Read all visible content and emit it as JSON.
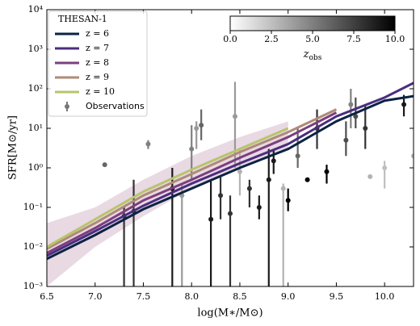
{
  "chart_data": {
    "type": "line",
    "xlabel": "log(M∗/M⊙)",
    "ylabel": "SFR[M⊙/yr]",
    "legend_title": "THESAN-1",
    "legend": "upper left",
    "log_y": true,
    "xlim": [
      6.5,
      10.3
    ],
    "ylim": [
      0.001,
      10000
    ],
    "xticks": [
      6.5,
      {
        "value": 7,
        "label": "7.0"
      },
      7.5,
      {
        "value": 8,
        "label": "8.0"
      },
      8.5,
      {
        "value": 9,
        "label": "9.0"
      },
      9.5,
      {
        "value": 10,
        "label": "10.0"
      }
    ],
    "yticks": [
      {
        "value": 0.001,
        "label": "10⁻³"
      },
      {
        "value": 0.01,
        "label": "10⁻²"
      },
      {
        "value": 0.1,
        "label": "10⁻¹"
      },
      {
        "value": 1,
        "label": "10⁰"
      },
      {
        "value": 10,
        "label": "10¹"
      },
      {
        "value": 100,
        "label": "10²"
      },
      {
        "value": 1000,
        "label": "10³"
      },
      {
        "value": 10000,
        "label": "10⁴"
      }
    ],
    "x": [
      6.5,
      7.0,
      7.5,
      8.0,
      8.5,
      9.0,
      9.5,
      10.0,
      10.3
    ],
    "series": [
      {
        "name": "z = 6",
        "color": "#0b2344",
        "values": [
          0.005,
          0.02,
          0.09,
          0.3,
          1.0,
          3.0,
          15,
          50,
          65
        ]
      },
      {
        "name": "z = 7",
        "color": "#4b2d7f",
        "values": [
          0.006,
          0.025,
          0.11,
          0.4,
          1.3,
          4,
          20,
          60,
          140
        ]
      },
      {
        "name": "z = 8",
        "color": "#7b3f7e",
        "values": [
          0.007,
          0.03,
          0.15,
          0.5,
          1.8,
          6,
          25,
          null,
          null
        ],
        "band_color": "#d9bfd0",
        "lower": [
          0.001,
          0.01,
          0.06,
          0.3,
          1,
          3,
          null,
          null,
          null
        ],
        "upper": [
          0.04,
          0.1,
          0.5,
          2,
          6,
          15,
          null,
          null,
          null
        ]
      },
      {
        "name": "z = 9",
        "color": "#ae8b77",
        "values": [
          0.009,
          0.04,
          0.2,
          0.7,
          2.5,
          8,
          30,
          null,
          null
        ]
      },
      {
        "name": "z = 10",
        "color": "#b8c46c",
        "values": [
          0.01,
          0.05,
          0.25,
          0.9,
          3,
          10,
          null,
          null,
          null
        ]
      }
    ],
    "observations": {
      "name": "Observations",
      "x": [
        7.1,
        7.3,
        7.4,
        7.55,
        7.8,
        7.9,
        8.0,
        8.05,
        8.1,
        8.2,
        8.3,
        8.4,
        8.45,
        8.5,
        8.6,
        8.7,
        8.8,
        8.85,
        8.95,
        9.0,
        9.1,
        9.2,
        9.3,
        9.4,
        9.6,
        9.65,
        9.7,
        9.8,
        9.85,
        10.0,
        10.2,
        10.3
      ],
      "y": [
        1.2,
        0.06,
        0.08,
        4,
        0.3,
        0.2,
        3,
        10,
        12,
        0.05,
        0.2,
        0.07,
        20,
        0.8,
        0.3,
        0.1,
        0.5,
        1.5,
        0.3,
        0.15,
        2,
        0.5,
        10,
        0.8,
        5,
        40,
        20,
        10,
        0.6,
        1,
        40,
        2
      ],
      "y_low": [
        null,
        0.001,
        0.001,
        3,
        0.001,
        0.001,
        0.5,
        3,
        5,
        0.001,
        0.05,
        0.001,
        1,
        0.2,
        0.1,
        0.05,
        0.001,
        0.7,
        0.001,
        0.08,
        1,
        null,
        3,
        0.4,
        2,
        10,
        10,
        3,
        null,
        0.3,
        20,
        null
      ],
      "y_high": [
        null,
        0.1,
        0.5,
        5,
        1,
        0.4,
        12,
        15,
        30,
        0.5,
        0.6,
        0.2,
        150,
        3,
        0.5,
        0.2,
        3,
        3,
        0.4,
        0.3,
        10,
        null,
        30,
        1.2,
        15,
        100,
        60,
        40,
        null,
        1.5,
        70,
        null
      ],
      "z": [
        6,
        8,
        8,
        5,
        9,
        4,
        5,
        4,
        6,
        9,
        8,
        8,
        4,
        3,
        8,
        9,
        9,
        9,
        3,
        10,
        6,
        10,
        8,
        10,
        7,
        5,
        7,
        8,
        3,
        2,
        9,
        3
      ]
    },
    "colorbar": {
      "label_main": "z",
      "label_sub": "obs",
      "lim": [
        0,
        10
      ],
      "colors": [
        "#ffffff",
        "#000000"
      ],
      "ticks": [
        {
          "value": 0,
          "label": "0.0"
        },
        2.5,
        {
          "value": 5,
          "label": "5.0"
        },
        7.5,
        {
          "value": 10,
          "label": "10.0"
        }
      ]
    }
  }
}
